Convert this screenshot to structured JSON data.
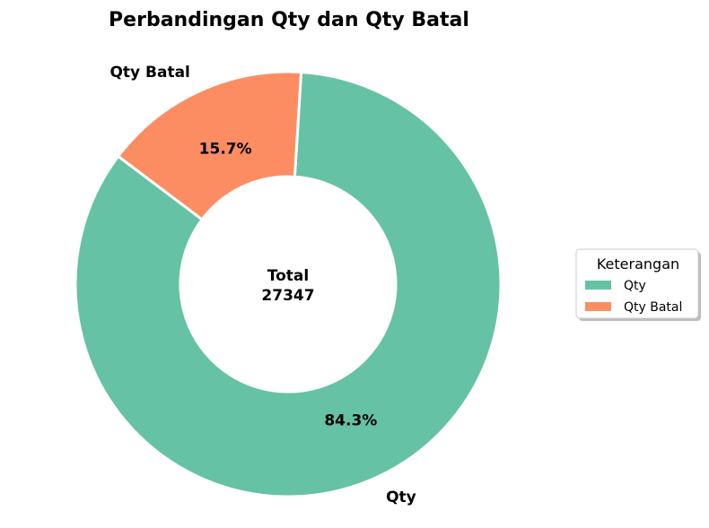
{
  "chart_data": {
    "type": "pie",
    "variant": "donut",
    "title": "Perbandingan Qty dan Qty Batal",
    "center_label": {
      "line1": "Total",
      "line2": "27347"
    },
    "slices": [
      {
        "label": "Qty",
        "percent": 84.3,
        "percent_label": "84.3%",
        "color": "#66c2a5"
      },
      {
        "label": "Qty Batal",
        "percent": 15.7,
        "percent_label": "15.7%",
        "color": "#fc8d62"
      }
    ],
    "legend": {
      "title": "Keterangan",
      "placement": "center-right",
      "entries": [
        "Qty",
        "Qty Batal"
      ]
    }
  }
}
